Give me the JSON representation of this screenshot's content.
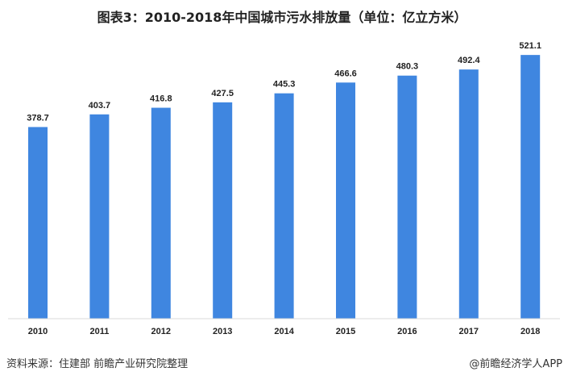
{
  "chart_data": {
    "type": "bar",
    "title": "图表3：2010-2018年中国城市污水排放量（单位：亿立方米）",
    "xlabel": "",
    "ylabel": "",
    "categories": [
      "2010",
      "2011",
      "2012",
      "2013",
      "2014",
      "2015",
      "2016",
      "2017",
      "2018"
    ],
    "values": [
      378.7,
      403.7,
      416.8,
      427.5,
      445.3,
      466.6,
      480.3,
      492.4,
      521.1
    ],
    "data_labels": [
      "378.7",
      "403.7",
      "416.8",
      "427.5",
      "445.3",
      "466.6",
      "480.3",
      "492.4",
      "521.1"
    ],
    "ylim": [
      0,
      550
    ],
    "grid": false,
    "bar_color": "#3F86E0"
  },
  "footer": {
    "source": "资料来源：住建部 前瞻产业研究院整理",
    "credit": "@前瞻经济学人APP"
  }
}
